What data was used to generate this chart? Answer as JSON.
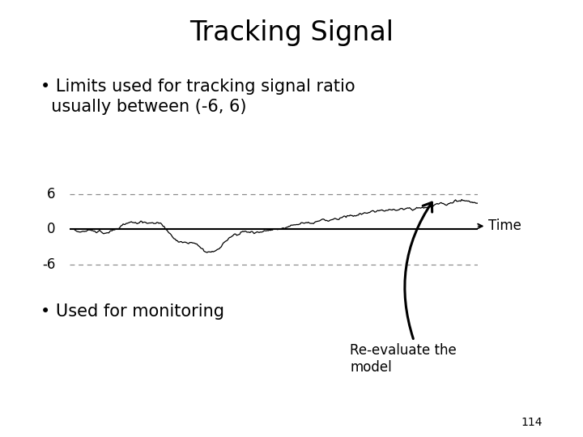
{
  "title": "Tracking Signal",
  "bullet1_line1": "• Limits used for tracking signal ratio",
  "bullet1_line2": "  usually between (-6, 6)",
  "bullet2": "• Used for monitoring",
  "annotation": "Re-evaluate the\nmodel",
  "time_label": "Time",
  "page_number": "114",
  "upper_limit": 6,
  "lower_limit": -6,
  "zero_line": 0,
  "bg_color": "#ffffff",
  "line_color": "#000000",
  "dashed_color": "#888888",
  "title_fontsize": 24,
  "bullet_fontsize": 15,
  "axis_label_fontsize": 12,
  "annotation_fontsize": 12,
  "page_fontsize": 10
}
